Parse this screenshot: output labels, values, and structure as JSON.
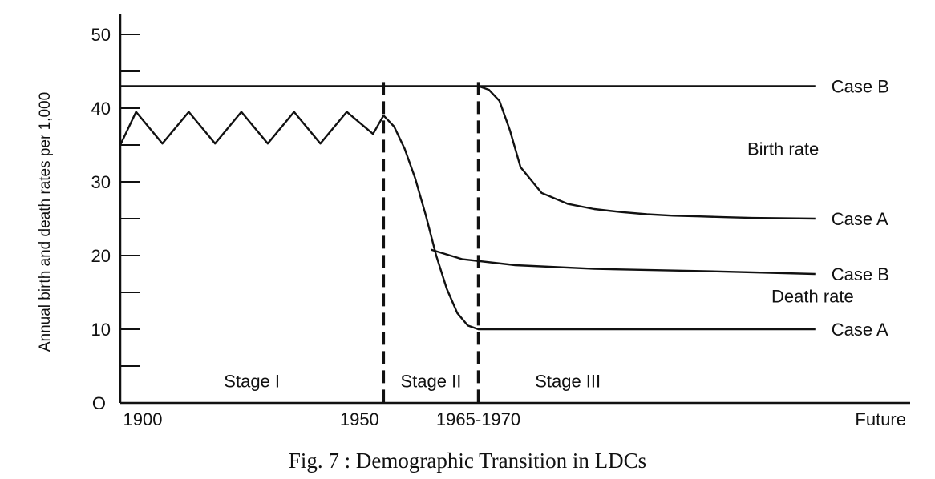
{
  "chart_data": {
    "type": "line",
    "title": "Fig. 7 : Demographic Transition in LDCs",
    "ylabel": "Annual birth and death rates per 1,000",
    "ylim": [
      0,
      50
    ],
    "y_ticks": [
      {
        "value": 0,
        "label": "O"
      },
      {
        "value": 10,
        "label": "10"
      },
      {
        "value": 20,
        "label": "20"
      },
      {
        "value": 30,
        "label": "30"
      },
      {
        "value": 40,
        "label": "40"
      },
      {
        "value": 50,
        "label": "50"
      }
    ],
    "x_ticks": [
      {
        "value": 1900,
        "label": "1900"
      },
      {
        "value": 1950,
        "label": "1950"
      },
      {
        "value": 1968,
        "label": "1965-1970"
      },
      {
        "value": 2050,
        "label": "Future"
      }
    ],
    "xlim": [
      1900,
      2050
    ],
    "stage_boundaries": [
      1950,
      1968
    ],
    "stages": [
      {
        "label": "Stage I",
        "x": 1925
      },
      {
        "label": "Stage II",
        "x": 1959
      },
      {
        "label": "Stage III",
        "x": 1985
      }
    ],
    "group_labels": [
      {
        "label": "Birth rate",
        "y": 34.5
      },
      {
        "label": "Death rate",
        "y": 14.5
      }
    ],
    "series": [
      {
        "label": "Case B",
        "group": "Birth rate",
        "x": [
          1900,
          2032
        ],
        "y": [
          43,
          43
        ]
      },
      {
        "label": "Case A",
        "group": "Birth rate",
        "x": [
          1968,
          1970,
          1972,
          1974,
          1976,
          1980,
          1985,
          1990,
          1995,
          2000,
          2005,
          2010,
          2015,
          2020,
          2032
        ],
        "y": [
          43,
          42.5,
          41,
          37,
          32,
          28.5,
          27,
          26.3,
          25.9,
          25.6,
          25.4,
          25.3,
          25.2,
          25.1,
          25
        ]
      },
      {
        "label": "Case B",
        "group": "Death rate",
        "x": [
          1959,
          1965,
          1975,
          1990,
          2010,
          2032
        ],
        "y": [
          20.8,
          19.5,
          18.7,
          18.2,
          17.9,
          17.5
        ]
      },
      {
        "label": "Case A",
        "group": "Death rate",
        "x": [
          1950,
          1952,
          1954,
          1956,
          1958,
          1960,
          1962,
          1964,
          1966,
          1968,
          1980,
          2000,
          2032
        ],
        "y": [
          39,
          37.5,
          34.5,
          30.5,
          25.5,
          20,
          15.5,
          12.2,
          10.5,
          10,
          10,
          10,
          10
        ]
      },
      {
        "label": "",
        "group": "Stage I fluctuation",
        "x": [
          1900,
          1903,
          1908,
          1913,
          1918,
          1923,
          1928,
          1933,
          1938,
          1943,
          1948,
          1950
        ],
        "y": [
          35,
          39.5,
          35.2,
          39.5,
          35.2,
          39.5,
          35.2,
          39.5,
          35.2,
          39.5,
          36.5,
          39
        ]
      }
    ]
  }
}
